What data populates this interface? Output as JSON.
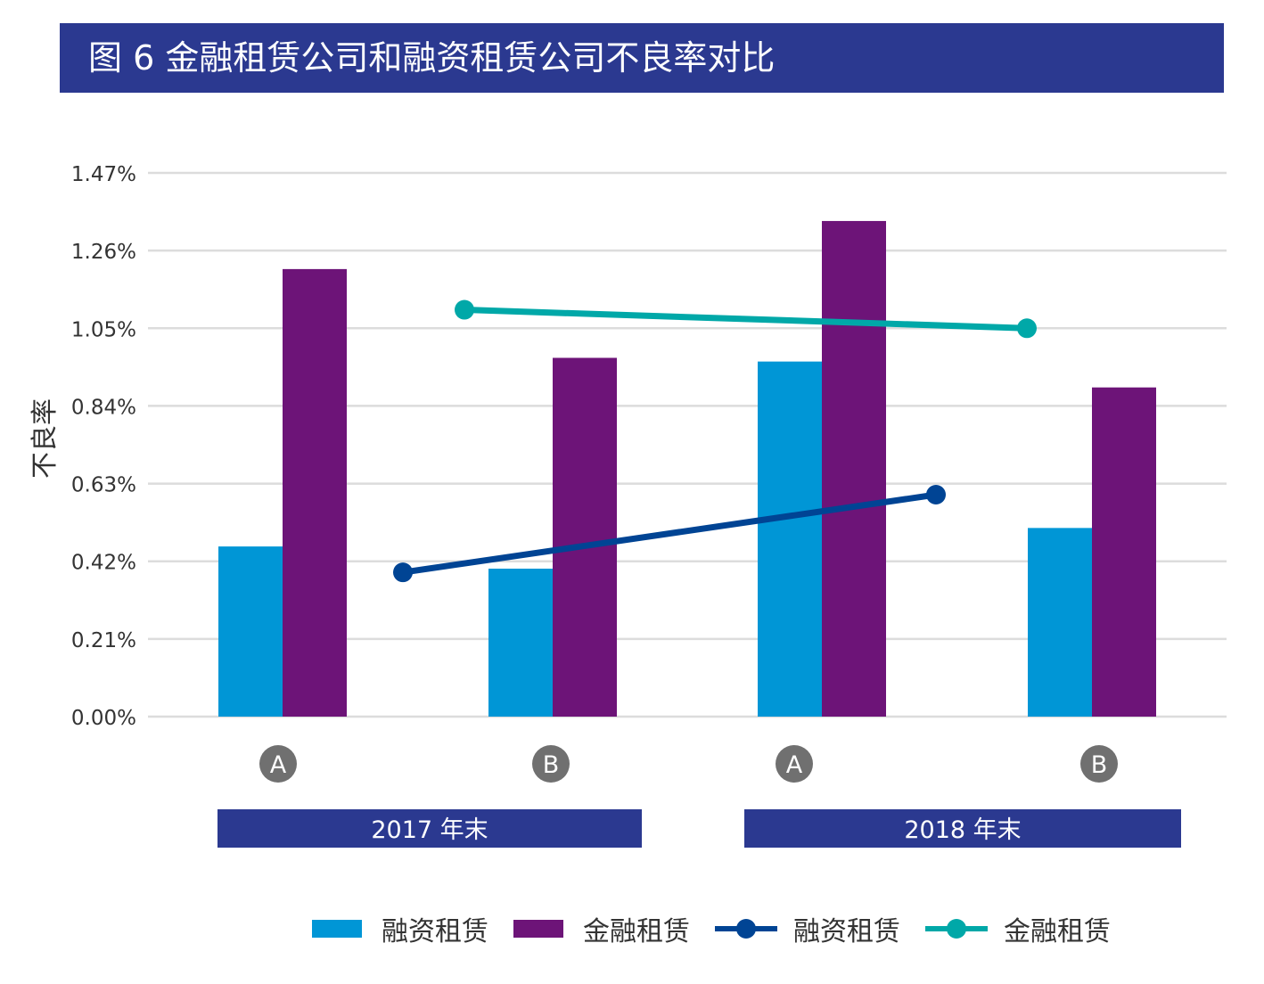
{
  "title": "图 6  金融租赁公司和融资租赁公司不良率对比",
  "chart_data": {
    "type": "bar",
    "title": "图 6  金融租赁公司和融资租赁公司不良率对比",
    "ylabel": "不良率",
    "xlabel": "",
    "ylim": [
      0,
      1.47
    ],
    "yticks": [
      0,
      0.21,
      0.42,
      0.63,
      0.84,
      1.05,
      1.26,
      1.47
    ],
    "ytick_labels": [
      "0.00%",
      "0.21%",
      "0.42%",
      "0.63%",
      "0.84%",
      "1.05%",
      "1.26%",
      "1.47%"
    ],
    "grid": true,
    "legend_placement": "bottom",
    "categories": [
      "A",
      "B",
      "A",
      "B"
    ],
    "groups": [
      {
        "label": "2017 年末",
        "categories": [
          "A",
          "B"
        ]
      },
      {
        "label": "2018 年末",
        "categories": [
          "A",
          "B"
        ]
      }
    ],
    "series": [
      {
        "name": "融资租赁",
        "kind": "bar",
        "color": "#0096d6",
        "values": [
          0.46,
          0.4,
          0.96,
          0.51
        ]
      },
      {
        "name": "金融租赁",
        "kind": "bar",
        "color": "#6d1478",
        "values": [
          1.21,
          0.97,
          1.34,
          0.89
        ]
      },
      {
        "name": "融资租赁",
        "kind": "line",
        "color": "#004494",
        "x": [
          "2017 年末",
          "2018 年末"
        ],
        "values": [
          0.39,
          0.6
        ]
      },
      {
        "name": "金融租赁",
        "kind": "line",
        "color": "#00a8a8",
        "x": [
          "2017 年末",
          "2018 年末"
        ],
        "values": [
          1.1,
          1.05
        ]
      }
    ],
    "colors": {
      "header": "#2b3990",
      "category_badge": "#707070",
      "grid": "#dcdcdc"
    }
  }
}
